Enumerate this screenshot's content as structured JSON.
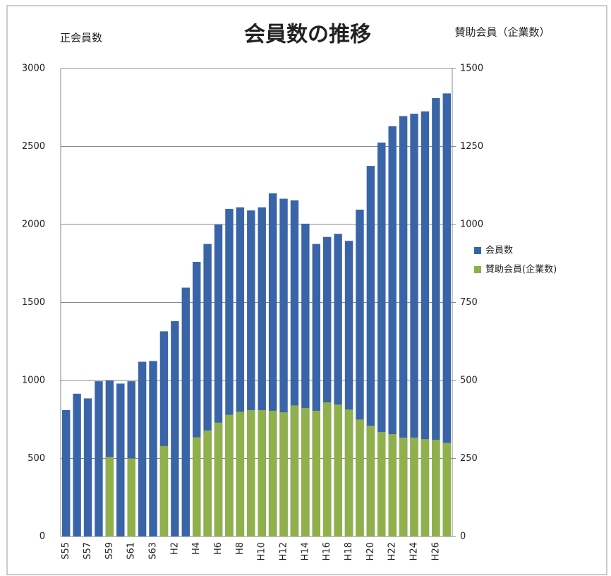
{
  "chart_data": {
    "type": "bar",
    "title": "会員数の推移",
    "y_label": "正会員数",
    "y2_label": "賛助会員（企業数）",
    "categories": [
      "S55",
      null,
      "S57",
      null,
      "S59",
      null,
      "S61",
      null,
      "S63",
      null,
      "H2",
      null,
      "H4",
      null,
      "H6",
      null,
      "H8",
      null,
      "H10",
      null,
      "H12",
      null,
      "H14",
      null,
      "H16",
      null,
      "H18",
      null,
      "H20",
      null,
      "H22",
      null,
      "H24",
      null,
      "H26",
      null
    ],
    "series": [
      {
        "name": "会員数",
        "color": "#3a64a8",
        "values": [
          810,
          915,
          885,
          995,
          1000,
          980,
          995,
          1120,
          1125,
          1315,
          1380,
          1595,
          1760,
          1875,
          2000,
          2100,
          2110,
          2090,
          2110,
          2200,
          2165,
          2155,
          2005,
          1875,
          1920,
          1940,
          1895,
          2095,
          2375,
          2525,
          2630,
          2695,
          2710,
          2725,
          2810,
          2840
        ]
      },
      {
        "name": "賛助会員(企業数)",
        "color": "#8fb04a",
        "axis": "y2",
        "values": [
          null,
          null,
          null,
          null,
          255,
          null,
          250,
          null,
          null,
          290,
          null,
          null,
          318,
          340,
          365,
          390,
          400,
          405,
          405,
          403,
          398,
          420,
          412,
          403,
          430,
          423,
          407,
          375,
          355,
          335,
          328,
          317,
          317,
          312,
          310,
          300
        ]
      }
    ],
    "ylim": [
      0,
      3000
    ],
    "yticks": [
      0,
      500,
      1000,
      1500,
      2000,
      2500,
      3000
    ],
    "y2lim": [
      0,
      1500
    ],
    "y2ticks": [
      0,
      250,
      500,
      750,
      1000,
      1250,
      1500
    ],
    "grid": true,
    "legend": "right"
  }
}
